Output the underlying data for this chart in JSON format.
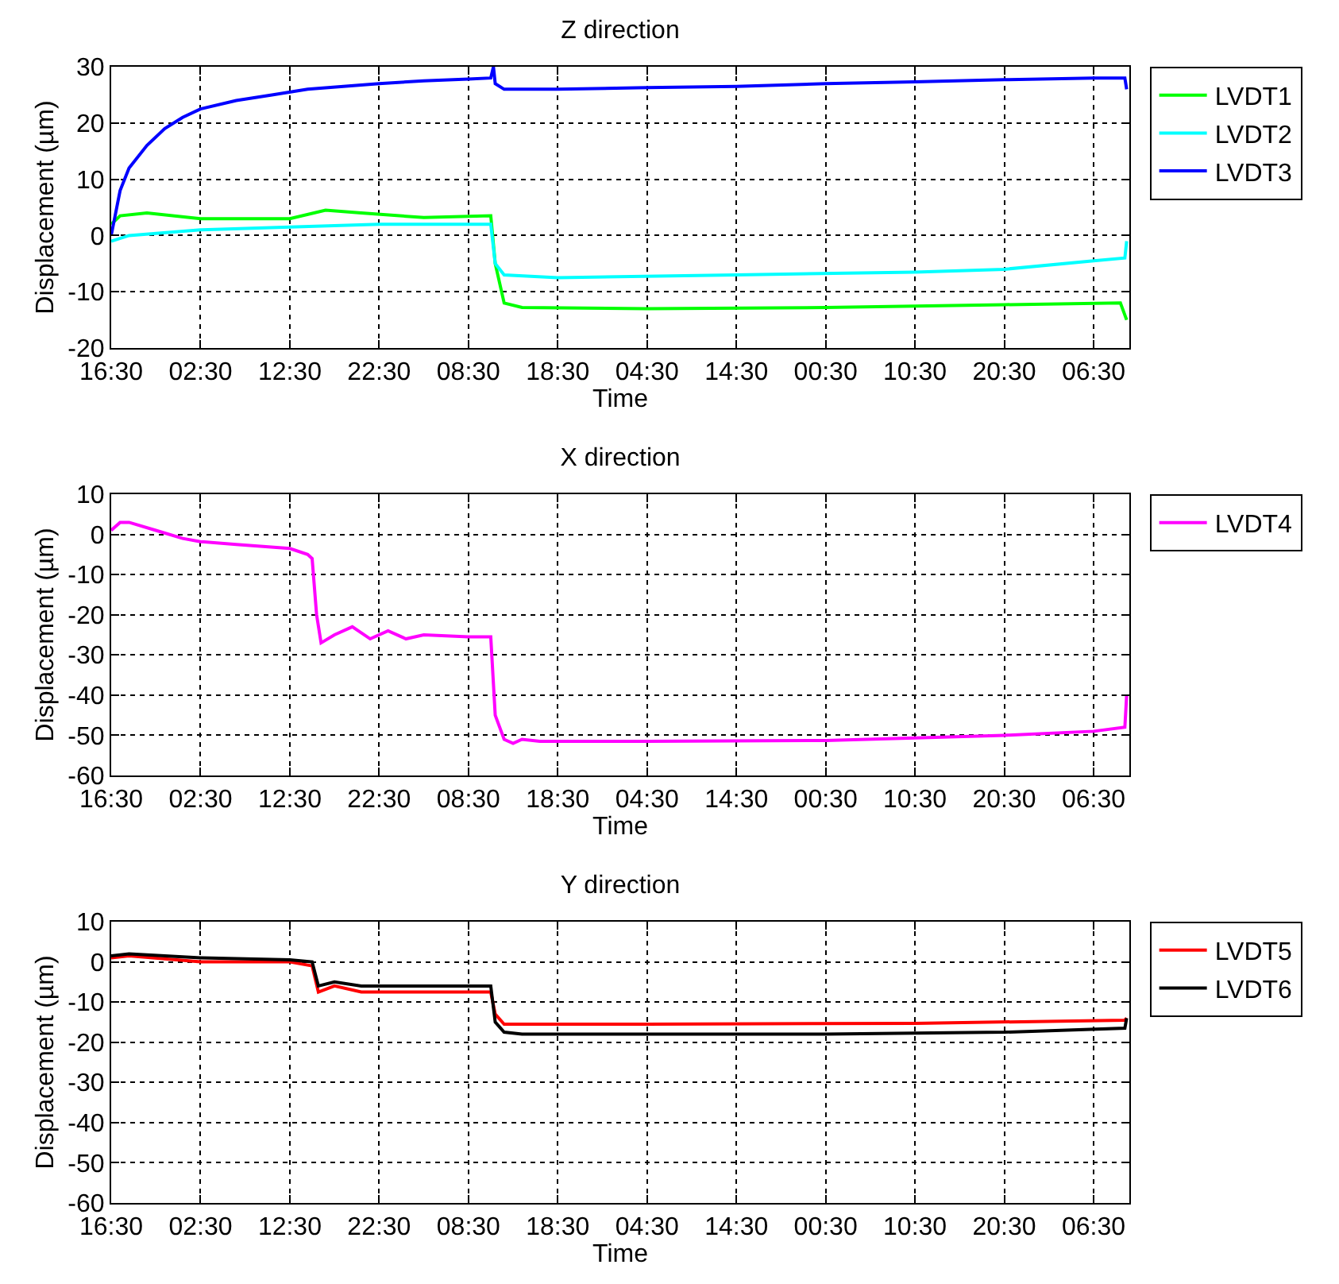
{
  "chart_data": [
    {
      "type": "line",
      "title": "Z direction",
      "xlabel": "Time",
      "ylabel": "Displacement (µm)",
      "xlim": [
        "--01-01T16:30",
        "--01-06T10:30"
      ],
      "xticks": [
        {
          "value": "--01-01T16:30",
          "label": "16:30"
        },
        {
          "value": "--01-02T02:30",
          "label": "02:30"
        },
        {
          "value": "--01-02T12:30",
          "label": "12:30"
        },
        {
          "value": "--01-02T22:30",
          "label": "22:30"
        },
        {
          "value": "--01-03T08:30",
          "label": "08:30"
        },
        {
          "value": "--01-03T18:30",
          "label": "18:30"
        },
        {
          "value": "--01-04T04:30",
          "label": "04:30"
        },
        {
          "value": "--01-04T14:30",
          "label": "14:30"
        },
        {
          "value": "--01-05T00:30",
          "label": "00:30"
        },
        {
          "value": "--01-05T10:30",
          "label": "10:30"
        },
        {
          "value": "--01-05T20:30",
          "label": "20:30"
        },
        {
          "value": "--01-06T06:30",
          "label": "06:30"
        }
      ],
      "ylim": [
        -20,
        30
      ],
      "yticks": [
        -20,
        -10,
        0,
        10,
        20,
        30
      ],
      "grid": true,
      "legend": "top right",
      "line_style": "solid",
      "series": [
        {
          "name": "LVDT1",
          "color": "#00ff00",
          "x": [
            "--01-01T16:30",
            "--01-01T17:30",
            "--01-01T20:30",
            "--01-02T02:30",
            "--01-02T12:30",
            "--01-02T16:30",
            "--01-02T20:30",
            "--01-03T03:30",
            "--01-03T11:00",
            "--01-03T11:30",
            "--01-03T12:30",
            "--01-03T14:30",
            "--01-04T04:30",
            "--01-05T00:30",
            "--01-05T20:30",
            "--01-06T09:30",
            "--01-06T10:12"
          ],
          "values": [
            2,
            3.5,
            4,
            3,
            3,
            4.5,
            4,
            3.2,
            3.5,
            -5,
            -12,
            -12.8,
            -13,
            -12.8,
            -12.3,
            -12,
            -15
          ]
        },
        {
          "name": "LVDT2",
          "color": "#00ffff",
          "x": [
            "--01-01T16:30",
            "--01-01T18:30",
            "--01-02T02:30",
            "--01-02T12:30",
            "--01-02T22:30",
            "--01-03T11:00",
            "--01-03T11:30",
            "--01-03T12:30",
            "--01-03T18:30",
            "--01-04T14:30",
            "--01-05T10:30",
            "--01-05T20:30",
            "--01-06T06:30",
            "--01-06T10:00",
            "--01-06T10:12"
          ],
          "values": [
            -1,
            0,
            1,
            1.5,
            2,
            2,
            -5,
            -7,
            -7.5,
            -7,
            -6.5,
            -6,
            -4.5,
            -4,
            -1
          ]
        },
        {
          "name": "LVDT3",
          "color": "#0000ff",
          "x": [
            "--01-01T16:30",
            "--01-01T17:30",
            "--01-01T18:30",
            "--01-01T20:30",
            "--01-01T22:30",
            "--01-02T00:30",
            "--01-02T02:30",
            "--01-02T06:30",
            "--01-02T10:30",
            "--01-02T14:30",
            "--01-02T18:30",
            "--01-02T22:30",
            "--01-03T03:30",
            "--01-03T08:30",
            "--01-03T11:00",
            "--01-03T11:18",
            "--01-03T11:30",
            "--01-03T12:30",
            "--01-03T18:30",
            "--01-04T04:30",
            "--01-04T14:30",
            "--01-05T00:30",
            "--01-05T10:30",
            "--01-05T20:30",
            "--01-06T06:30",
            "--01-06T10:00",
            "--01-06T10:12"
          ],
          "values": [
            0,
            8,
            12,
            16,
            19,
            21,
            22.5,
            24,
            25,
            26,
            26.5,
            27,
            27.5,
            27.8,
            28,
            30,
            27,
            26,
            26,
            26.3,
            26.5,
            27,
            27.3,
            27.7,
            28,
            28,
            26
          ]
        }
      ]
    },
    {
      "type": "line",
      "title": "X direction",
      "xlabel": "Time",
      "ylabel": "Displacement (µm)",
      "xlim": [
        "--01-01T16:30",
        "--01-06T10:30"
      ],
      "xticks": [
        {
          "value": "--01-01T16:30",
          "label": "16:30"
        },
        {
          "value": "--01-02T02:30",
          "label": "02:30"
        },
        {
          "value": "--01-02T12:30",
          "label": "12:30"
        },
        {
          "value": "--01-02T22:30",
          "label": "22:30"
        },
        {
          "value": "--01-03T08:30",
          "label": "08:30"
        },
        {
          "value": "--01-03T18:30",
          "label": "18:30"
        },
        {
          "value": "--01-04T04:30",
          "label": "04:30"
        },
        {
          "value": "--01-04T14:30",
          "label": "14:30"
        },
        {
          "value": "--01-05T00:30",
          "label": "00:30"
        },
        {
          "value": "--01-05T10:30",
          "label": "10:30"
        },
        {
          "value": "--01-05T20:30",
          "label": "20:30"
        },
        {
          "value": "--01-06T06:30",
          "label": "06:30"
        }
      ],
      "ylim": [
        -60,
        10
      ],
      "yticks": [
        -60,
        -50,
        -40,
        -30,
        -20,
        -10,
        0,
        10
      ],
      "grid": true,
      "legend": "top right",
      "line_style": "solid",
      "series": [
        {
          "name": "LVDT4",
          "color": "#ff00ff",
          "x": [
            "--01-01T16:30",
            "--01-01T17:30",
            "--01-01T18:30",
            "--01-01T21:30",
            "--01-02T00:30",
            "--01-02T02:30",
            "--01-02T06:30",
            "--01-02T12:30",
            "--01-02T14:30",
            "--01-02T15:00",
            "--01-02T15:30",
            "--01-02T16:00",
            "--01-02T17:30",
            "--01-02T19:30",
            "--01-02T21:30",
            "--01-02T23:30",
            "--01-03T01:30",
            "--01-03T03:30",
            "--01-03T08:30",
            "--01-03T11:00",
            "--01-03T11:30",
            "--01-03T12:30",
            "--01-03T13:30",
            "--01-03T14:30",
            "--01-03T16:30",
            "--01-04T04:30",
            "--01-05T00:30",
            "--01-05T20:30",
            "--01-06T06:30",
            "--01-06T10:00",
            "--01-06T10:12"
          ],
          "values": [
            1,
            3,
            3,
            1,
            -1,
            -1.8,
            -2.5,
            -3.5,
            -5,
            -6,
            -20,
            -27,
            -25,
            -23,
            -26,
            -24,
            -26,
            -25,
            -25.5,
            -25.5,
            -45,
            -51,
            -52,
            -51,
            -51.5,
            -51.5,
            -51.3,
            -50,
            -49,
            -48,
            -40
          ]
        }
      ]
    },
    {
      "type": "line",
      "title": "Y direction",
      "xlabel": "Time",
      "ylabel": "Displacement (µm)",
      "xlim": [
        "--01-01T16:30",
        "--01-06T10:30"
      ],
      "xticks": [
        {
          "value": "--01-01T16:30",
          "label": "16:30"
        },
        {
          "value": "--01-02T02:30",
          "label": "02:30"
        },
        {
          "value": "--01-02T12:30",
          "label": "12:30"
        },
        {
          "value": "--01-02T22:30",
          "label": "22:30"
        },
        {
          "value": "--01-03T08:30",
          "label": "08:30"
        },
        {
          "value": "--01-03T18:30",
          "label": "18:30"
        },
        {
          "value": "--01-04T04:30",
          "label": "04:30"
        },
        {
          "value": "--01-04T14:30",
          "label": "14:30"
        },
        {
          "value": "--01-05T00:30",
          "label": "00:30"
        },
        {
          "value": "--01-05T10:30",
          "label": "10:30"
        },
        {
          "value": "--01-05T20:30",
          "label": "20:30"
        },
        {
          "value": "--01-06T06:30",
          "label": "06:30"
        }
      ],
      "ylim": [
        -60,
        10
      ],
      "yticks": [
        -60,
        -50,
        -40,
        -30,
        -20,
        -10,
        0,
        10
      ],
      "grid": true,
      "legend": "top right",
      "line_style": "solid",
      "series": [
        {
          "name": "LVDT5",
          "color": "#ff0000",
          "x": [
            "--01-01T16:30",
            "--01-01T18:30",
            "--01-02T02:30",
            "--01-02T12:30",
            "--01-02T15:00",
            "--01-02T15:42",
            "--01-02T17:30",
            "--01-02T20:30",
            "--01-03T03:30",
            "--01-03T11:00",
            "--01-03T11:30",
            "--01-03T12:30",
            "--01-04T04:30",
            "--01-05T10:30",
            "--01-06T10:00",
            "--01-06T10:12"
          ],
          "values": [
            1,
            1.5,
            0,
            0,
            -1,
            -7.5,
            -6,
            -7.5,
            -7.5,
            -7.5,
            -13,
            -15.5,
            -15.5,
            -15.3,
            -14.5,
            -14
          ]
        },
        {
          "name": "LVDT6",
          "color": "#000000",
          "x": [
            "--01-01T16:30",
            "--01-01T18:30",
            "--01-02T02:30",
            "--01-02T12:30",
            "--01-02T15:00",
            "--01-02T15:42",
            "--01-02T17:30",
            "--01-02T20:30",
            "--01-03T11:00",
            "--01-03T11:30",
            "--01-03T12:30",
            "--01-03T14:30",
            "--01-05T00:30",
            "--01-05T20:30",
            "--01-06T10:00",
            "--01-06T10:12"
          ],
          "values": [
            1.5,
            2,
            1,
            0.5,
            0,
            -6,
            -5,
            -6,
            -6,
            -15,
            -17.5,
            -18,
            -18,
            -17.5,
            -16.5,
            -14
          ]
        }
      ]
    }
  ]
}
